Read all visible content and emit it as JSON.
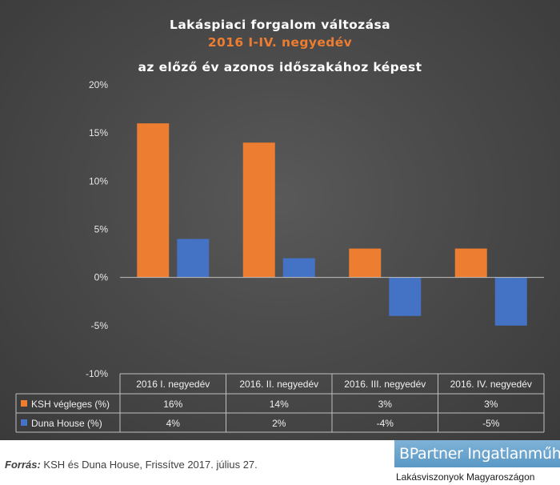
{
  "title": {
    "line1": "Lakáspiaci forgalom változása",
    "line2": "2016 I-IV. negyedév",
    "line3": "az előző év azonos időszakához képest"
  },
  "chart_data": {
    "type": "bar",
    "categories": [
      "2016 I. negyedév",
      "2016. II. negyedév",
      "2016. III. negyedév",
      "2016. IV. negyedév"
    ],
    "series": [
      {
        "name": "KSH végleges (%)",
        "values": [
          16,
          14,
          3,
          3
        ],
        "labels": [
          "16%",
          "14%",
          "3%",
          "3%"
        ],
        "color": "#ed7d31"
      },
      {
        "name": "Duna House (%)",
        "values": [
          4,
          2,
          -4,
          -5
        ],
        "labels": [
          "4%",
          "2%",
          "-4%",
          "-5%"
        ],
        "color": "#4472c4"
      }
    ],
    "ylim": [
      -10,
      20
    ],
    "yticks": [
      20,
      15,
      10,
      5,
      0,
      -5,
      -10
    ],
    "ytick_labels": [
      "20%",
      "15%",
      "10%",
      "5%",
      "0%",
      "-5%",
      "-10%"
    ],
    "grid": false,
    "legend": "data-table",
    "axis_color": "#bfbfbf"
  },
  "footer": {
    "source_label": "Forrás:",
    "source_text": "KSH és Duna House, Frissítve 2017. július 27."
  },
  "logo": {
    "name": "BPartner Ingatlanműhely",
    "tagline": "Lakásviszonyok Magyaroszágon"
  }
}
